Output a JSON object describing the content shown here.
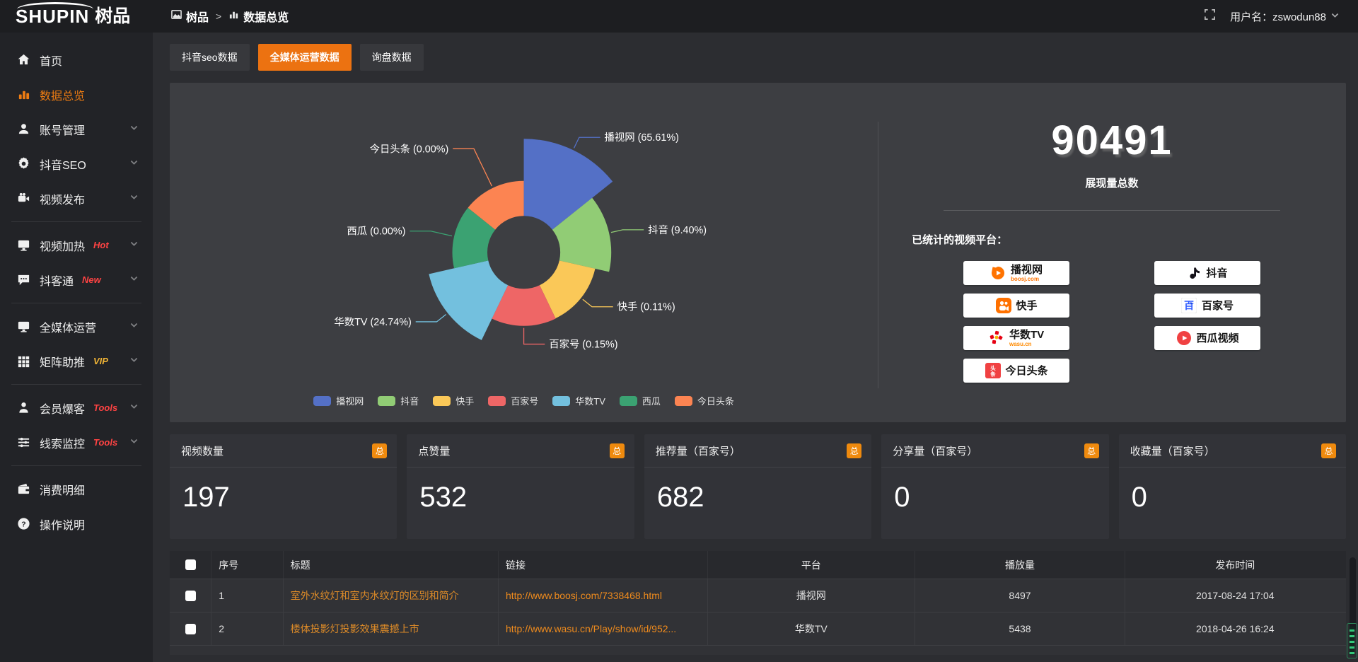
{
  "brand": {
    "latin": "SHUPIN",
    "cjk": "树品"
  },
  "topbar": {
    "breadcrumb": [
      {
        "icon": "image-icon",
        "label": "树品"
      },
      {
        "icon": "bars-mini-icon",
        "label": "数据总览"
      }
    ],
    "separator": ">",
    "username_label": "用户名：zswodun88"
  },
  "sidebar": {
    "items": [
      {
        "icon": "home",
        "label": "首页",
        "chevron": false
      },
      {
        "icon": "chart-bars",
        "label": "数据总览",
        "active": true,
        "chevron": false
      },
      {
        "icon": "user",
        "label": "账号管理",
        "chevron": true
      },
      {
        "icon": "gear",
        "label": "抖音SEO",
        "chevron": true
      },
      {
        "icon": "videocam",
        "label": "视频发布",
        "chevron": true,
        "divider_after": true
      },
      {
        "icon": "monitor",
        "label": "视频加热",
        "tag": "Hot",
        "tag_color": "#ff4343",
        "chevron": true
      },
      {
        "icon": "chat",
        "label": "抖客通",
        "tag": "New",
        "tag_color": "#ff4343",
        "chevron": true,
        "divider_after": true
      },
      {
        "icon": "monitor",
        "label": "全媒体运营",
        "chevron": true
      },
      {
        "icon": "grid",
        "label": "矩阵助推",
        "tag": "VIP",
        "tag_color": "#efb336",
        "chevron": true,
        "divider_after": true
      },
      {
        "icon": "person",
        "label": "会员爆客",
        "tag": "Tools",
        "tag_color": "#ff4343",
        "chevron": true
      },
      {
        "icon": "sliders",
        "label": "线索监控",
        "tag": "Tools",
        "tag_color": "#ff4343",
        "chevron": true,
        "divider_after": true
      },
      {
        "icon": "wallet",
        "label": "消费明细",
        "chevron": false
      },
      {
        "icon": "question",
        "label": "操作说明",
        "chevron": false
      }
    ]
  },
  "tabs": {
    "items": [
      {
        "label": "抖音seo数据",
        "active": false
      },
      {
        "label": "全媒体运营数据",
        "active": true
      },
      {
        "label": "询盘数据",
        "active": false
      }
    ]
  },
  "chart_data": {
    "type": "pie",
    "subtype": "nightingale-rose",
    "title": "",
    "categories": [
      "播视网",
      "抖音",
      "快手",
      "百家号",
      "华数TV",
      "西瓜",
      "今日头条"
    ],
    "values": [
      65.61,
      9.4,
      0.11,
      0.15,
      24.74,
      0.0,
      0.0
    ],
    "unit": "%",
    "labels": [
      "播视网 (65.61%)",
      "抖音 (9.40%)",
      "快手 (0.11%)",
      "百家号 (0.15%)",
      "华数TV (24.74%)",
      "西瓜 (0.00%)",
      "今日头条 (0.00%)"
    ],
    "colors": [
      "#5470c6",
      "#91cc75",
      "#fac858",
      "#ee6666",
      "#73c0de",
      "#3ba272",
      "#fc8452"
    ],
    "legend_position": "bottom",
    "label_ext": [
      20,
      20,
      20,
      26,
      20,
      34,
      62
    ]
  },
  "summary": {
    "total": "90491",
    "total_label": "展现量总数",
    "platforms_title": "已统计的视频平台：",
    "platforms": [
      {
        "name": "播视网",
        "sub": "boosj.com",
        "sub_color": "#ff7300",
        "logo": "boosj"
      },
      {
        "name": "快手",
        "logo": "kuaishou"
      },
      {
        "name": "华数TV",
        "sub": "wasu.cn",
        "sub_color": "#ff8a00",
        "logo": "wasu"
      },
      {
        "name": "今日头条",
        "logo": "toutiao"
      },
      {
        "name": "抖音",
        "logo": "douyin"
      },
      {
        "name": "百家号",
        "logo": "baijia"
      },
      {
        "name": "西瓜视频",
        "logo": "xigua"
      }
    ]
  },
  "stats": {
    "badge": "总",
    "cards": [
      {
        "label": "视频数量",
        "value": "197"
      },
      {
        "label": "点赞量",
        "value": "532"
      },
      {
        "label": "推荐量（百家号）",
        "value": "682"
      },
      {
        "label": "分享量（百家号）",
        "value": "0"
      },
      {
        "label": "收藏量（百家号）",
        "value": "0"
      }
    ]
  },
  "table": {
    "columns": [
      "序号",
      "标题",
      "链接",
      "平台",
      "播放量",
      "发布时间"
    ],
    "rows": [
      {
        "seq": "1",
        "title": "室外水纹灯和室内水纹灯的区别和简介",
        "link": "http://www.boosj.com/7338468.html",
        "platform": "播视网",
        "plays": "8497",
        "time": "2017-08-24 17:04"
      },
      {
        "seq": "2",
        "title": "楼体投影灯投影效果震撼上市",
        "link": "http://www.wasu.cn/Play/show/id/952...",
        "platform": "华数TV",
        "plays": "5438",
        "time": "2018-04-26 16:24"
      }
    ]
  },
  "colors": {
    "accent": "#ec7211",
    "title_link": "#dd8b28",
    "link": "#ef8b1d"
  }
}
